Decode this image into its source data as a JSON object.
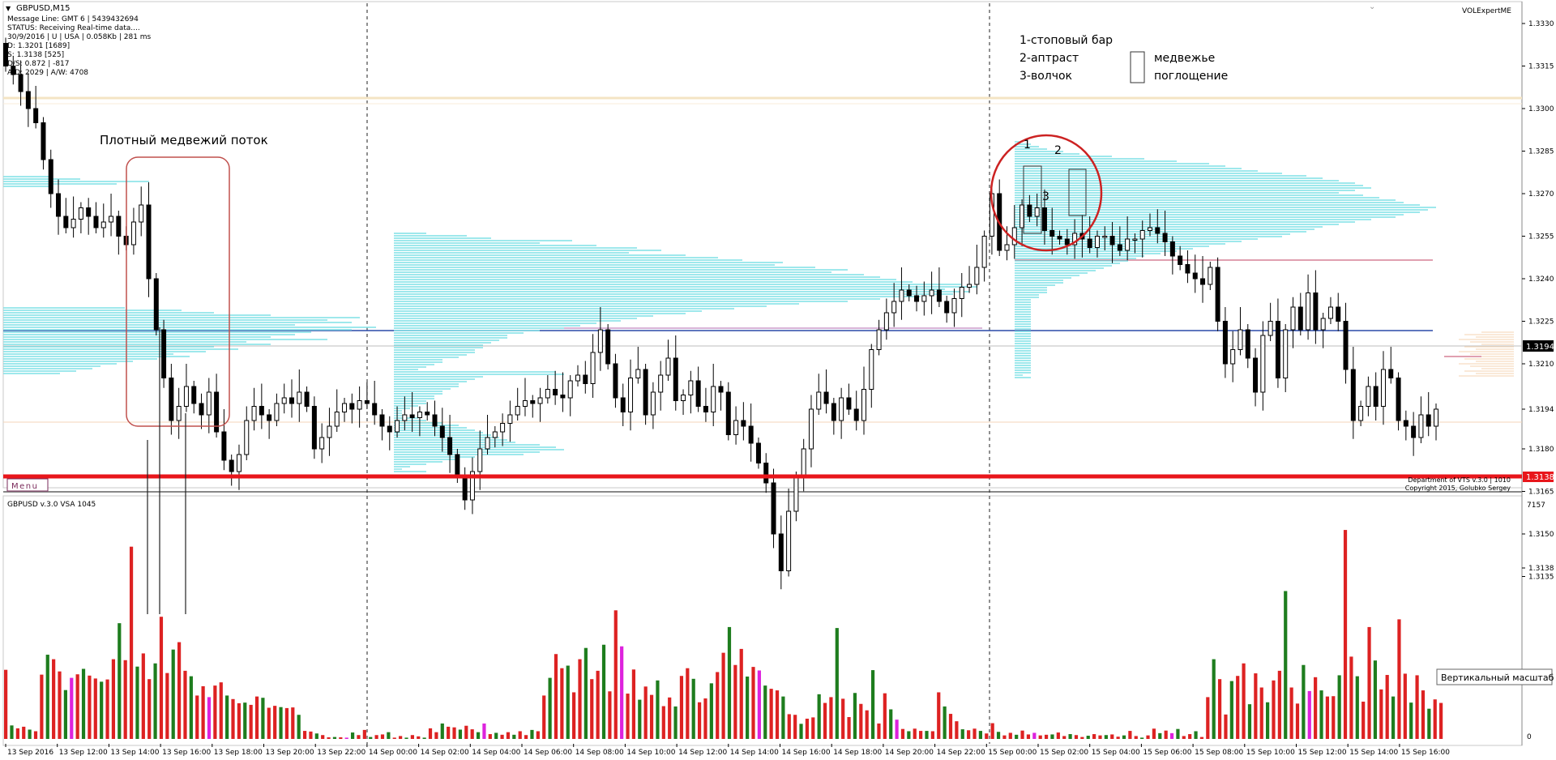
{
  "symbol_title": "GBPUSD,M15",
  "info_lines": [
    "Message Line: GMT 6 | 5439432694",
    "STATUS:  Receiving Real-time data....",
    "30/9/2016 | U | USA | 0.058Kb | 281 ms",
    "D: 1.3201 [1689]",
    "S: 1.3138 [525]",
    "D/S: 0.872 | -817",
    "A/D: 2029 | A/W: 4708"
  ],
  "indicator_name": "VOLExpertME",
  "menu_label": "Menu",
  "copyright_lines": [
    "Department of VTS  v.3.0 | 1010",
    "Copyright 2015, Golubko Sergey"
  ],
  "volume_panel_title": "GBPUSD v.3.0 VSA 1045",
  "volume_axis_labels": [
    "7157",
    "0"
  ],
  "tooltip": "Вертикальный масштаб",
  "annotations": {
    "bear_flow": "Плотный медвежий поток",
    "legend_lines": [
      "1-стоповый бар",
      "2-аптраст",
      "3-волчок"
    ],
    "engulf_lines": [
      "медвежье",
      "поглощение"
    ],
    "marker_1": "1",
    "marker_2": "2",
    "marker_3": "3"
  },
  "colors": {
    "bull_volume": "#1e7d1e",
    "bear_volume": "#dd2222",
    "neutral_volume": "#dd22dd",
    "support_line": "#e8161b",
    "poc_line": "#2a4aa8",
    "profile": "#7fe0e6",
    "circle": "#cc2222"
  },
  "chart_data": {
    "type": "candlestick",
    "title": "GBPUSD,M15",
    "price_axis_ticks": [
      "1.3330",
      "1.3315",
      "1.3300",
      "1.3285",
      "1.3270",
      "1.3255",
      "1.3240",
      "1.3225",
      "1.3210",
      "1.3194",
      "1.3180",
      "1.3165",
      "1.3150",
      "1.3138",
      "1.3135"
    ],
    "ylim": [
      1.3131,
      1.3338
    ],
    "current_price": "1.3194",
    "support_price": "1.3138",
    "time_labels": [
      "13 Sep 2016",
      "13 Sep 12:00",
      "13 Sep 14:00",
      "13 Sep 16:00",
      "13 Sep 18:00",
      "13 Sep 20:00",
      "13 Sep 22:00",
      "14 Sep 00:00",
      "14 Sep 02:00",
      "14 Sep 04:00",
      "14 Sep 06:00",
      "14 Sep 08:00",
      "14 Sep 10:00",
      "14 Sep 12:00",
      "14 Sep 14:00",
      "14 Sep 16:00",
      "14 Sep 18:00",
      "14 Sep 20:00",
      "14 Sep 22:00",
      "15 Sep 00:00",
      "15 Sep 02:00",
      "15 Sep 04:00",
      "15 Sep 06:00",
      "15 Sep 08:00",
      "15 Sep 10:00",
      "15 Sep 12:00",
      "15 Sep 14:00",
      "15 Sep 16:00"
    ],
    "closes": [
      1.3315,
      1.3312,
      1.3306,
      1.33,
      1.3295,
      1.3282,
      1.327,
      1.3262,
      1.3258,
      1.3261,
      1.3265,
      1.3262,
      1.3258,
      1.326,
      1.3262,
      1.3255,
      1.3252,
      1.326,
      1.3266,
      1.324,
      1.3222,
      1.3205,
      1.319,
      1.3195,
      1.3202,
      1.3196,
      1.3192,
      1.32,
      1.3186,
      1.3176,
      1.3172,
      1.3178,
      1.319,
      1.3195,
      1.3192,
      1.319,
      1.3196,
      1.3198,
      1.3196,
      1.32,
      1.3195,
      1.318,
      1.3184,
      1.3188,
      1.3193,
      1.3196,
      1.3194,
      1.3197,
      1.3196,
      1.3192,
      1.3188,
      1.3186,
      1.319,
      1.3192,
      1.3191,
      1.3193,
      1.3192,
      1.3188,
      1.3184,
      1.3178,
      1.317,
      1.3162,
      1.3172,
      1.318,
      1.3184,
      1.3186,
      1.3189,
      1.3192,
      1.3195,
      1.3197,
      1.3196,
      1.3198,
      1.3201,
      1.3199,
      1.3198,
      1.3204,
      1.3206,
      1.3203,
      1.3214,
      1.3222,
      1.321,
      1.3198,
      1.3193,
      1.3205,
      1.3208,
      1.3192,
      1.32,
      1.3206,
      1.3212,
      1.3197,
      1.3199,
      1.3204,
      1.3195,
      1.3193,
      1.3202,
      1.32,
      1.3185,
      1.319,
      1.3188,
      1.3182,
      1.3175,
      1.3168,
      1.315,
      1.3137,
      1.3158,
      1.317,
      1.318,
      1.3194,
      1.32,
      1.3196,
      1.319,
      1.3198,
      1.3194,
      1.319,
      1.3201,
      1.3215,
      1.3222,
      1.3228,
      1.3232,
      1.3236,
      1.3234,
      1.3232,
      1.3234,
      1.3236,
      1.3232,
      1.3228,
      1.3233,
      1.3237,
      1.3238,
      1.3244,
      1.3255,
      1.327,
      1.325,
      1.3252,
      1.3258,
      1.3266,
      1.3262,
      1.3265,
      1.3257,
      1.3255,
      1.3254,
      1.3252,
      1.3256,
      1.3254,
      1.3251,
      1.3255,
      1.3255,
      1.3252,
      1.325,
      1.3254,
      1.3254,
      1.3257,
      1.3258,
      1.3256,
      1.3253,
      1.3248,
      1.3245,
      1.3242,
      1.324,
      1.3238,
      1.3244,
      1.3225,
      1.321,
      1.3215,
      1.3222,
      1.3212,
      1.32,
      1.322,
      1.3225,
      1.3205,
      1.3222,
      1.323,
      1.3222,
      1.3235,
      1.3222,
      1.3226,
      1.323,
      1.3225,
      1.3208,
      1.319,
      1.3195,
      1.3202,
      1.3195,
      1.3208,
      1.3205,
      1.319,
      1.3188,
      1.3184,
      1.3192,
      1.3188,
      1.3194
    ],
    "volumes": [
      2150,
      420,
      330,
      380,
      290,
      240,
      2000,
      2620,
      2480,
      2100,
      1520,
      1900,
      2010,
      2180,
      1970,
      1880,
      1780,
      1850,
      2480,
      3600,
      2450,
      5980,
      2250,
      2660,
      1860,
      2350,
      3800,
      2050,
      2780,
      3010,
      2120,
      1950,
      1350,
      1640,
      1300,
      1660,
      1760,
      1350,
      1240,
      1110,
      1130,
      1060,
      1320,
      1280,
      970,
      1030,
      990,
      960,
      980,
      750,
      250,
      230,
      170,
      120,
      50,
      60,
      50,
      40,
      200,
      120,
      280,
      60,
      120,
      140,
      210,
      40,
      90,
      40,
      120,
      80,
      40,
      330,
      210,
      480,
      380,
      360,
      290,
      410,
      300,
      210,
      480,
      150,
      190,
      130,
      210,
      130,
      240,
      120,
      280,
      240,
      1350,
      1900,
      2640,
      2200,
      2280,
      1450,
      2480,
      2830,
      1860,
      2120,
      2930,
      1480,
      4000,
      2880,
      1410,
      2160,
      1220,
      1630,
      1370,
      1820,
      1020,
      1290,
      1010,
      1960,
      2200,
      1870,
      1140,
      1260,
      1730,
      2080,
      2680,
      3480,
      2300,
      2800,
      1940,
      2240,
      2130,
      1660,
      1560,
      1510,
      1320,
      770,
      750,
      470,
      630,
      670,
      1390,
      1120,
      1300,
      3450,
      1250,
      680,
      1430,
      1090,
      890,
      2140,
      480,
      1420,
      920,
      600,
      310,
      240,
      320,
      250,
      250,
      240,
      1450,
      1010,
      780,
      550,
      300,
      270,
      320,
      250,
      170,
      490,
      220,
      110,
      190,
      130,
      260,
      140,
      190,
      110,
      130,
      140,
      200,
      90,
      150,
      120,
      60,
      100,
      150,
      110,
      120,
      140,
      70,
      110,
      250,
      90,
      40,
      110,
      320,
      180,
      260,
      180,
      310,
      90,
      150,
      240,
      60,
      1300,
      2480,
      1860,
      760,
      1800,
      1960,
      2350,
      1080,
      2040,
      1600,
      1140,
      1820,
      2120,
      4600,
      1600,
      1100,
      2300,
      1490,
      1920,
      1510,
      1320,
      1330,
      1980,
      6500,
      2560,
      1950,
      1160,
      3480,
      2440,
      1540,
      1990,
      1320,
      3720,
      2030,
      1130,
      1980,
      1510,
      940,
      1230,
      1120
    ]
  }
}
